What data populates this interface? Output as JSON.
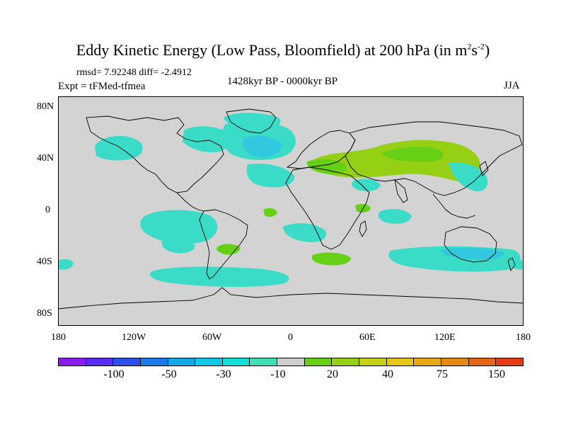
{
  "header": {
    "title_main": "Eddy Kinetic Energy (Low Pass, Bloomfield) at 200 hPa (in m",
    "title_sup1": "2",
    "title_s": "s",
    "title_sup2": "-2",
    "title_end": ")",
    "stats": "rmsd= 7.92248 diff= -2.4912",
    "expt": "Expt = tFMed-tfmea",
    "period": "1428kyr BP - 0000kyr BP",
    "season": "JJA"
  },
  "axes": {
    "lat_labels": [
      "80N",
      "40N",
      "0",
      "40S",
      "80S"
    ],
    "lon_labels": [
      "180",
      "120W",
      "60W",
      "0",
      "60E",
      "120E",
      "180"
    ]
  },
  "colorbar": {
    "colors": [
      "#8a1cf0",
      "#5a2cf0",
      "#2b50e6",
      "#1a7ae6",
      "#14a8e6",
      "#12c8e6",
      "#12e0d8",
      "#3ce0b4",
      "#cfcfcf",
      "#66d014",
      "#96d014",
      "#c4d014",
      "#e6c814",
      "#e6a814",
      "#e68814",
      "#e66414",
      "#e63c14"
    ],
    "labels": [
      "-100",
      "-50",
      "-30",
      "-10",
      "20",
      "40",
      "75",
      "150"
    ]
  },
  "map": {
    "background": "#d3d3d3",
    "colors": {
      "blue": "#32c8e0",
      "lightblue": "#3adcc8",
      "green": "#66d014",
      "lightgreen": "#96d014"
    }
  }
}
